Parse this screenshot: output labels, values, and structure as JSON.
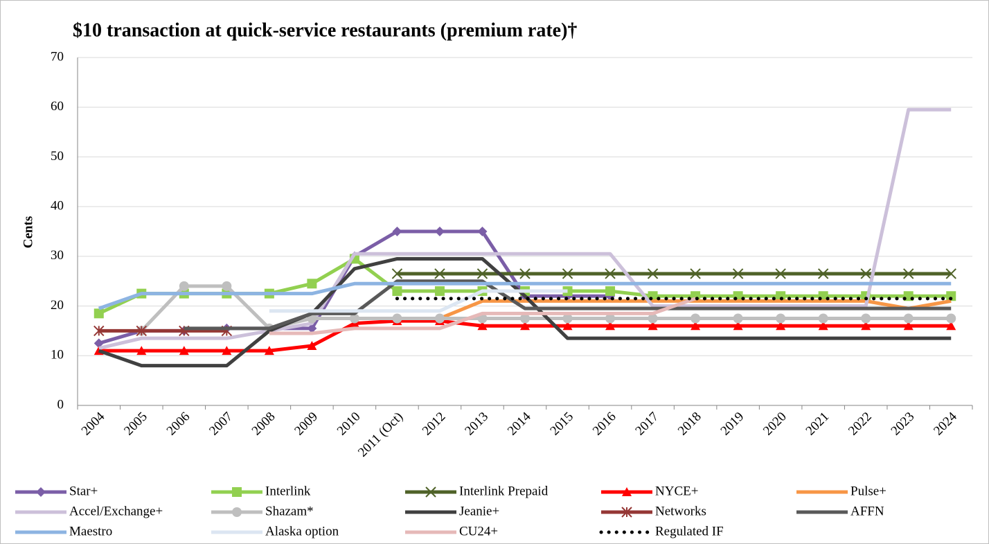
{
  "chart_data": {
    "type": "line",
    "title": "$10 transaction at quick-service restaurants (premium rate)†",
    "y_label": "Cents",
    "categories": [
      "2004",
      "2005",
      "2006",
      "2007",
      "2008",
      "2009",
      "2010",
      "2011 (Oct)",
      "2012",
      "2013",
      "2014",
      "2015",
      "2016",
      "2017",
      "2018",
      "2019",
      "2020",
      "2021",
      "2022",
      "2023",
      "2024"
    ],
    "ylim": [
      0,
      70
    ],
    "yticks": [
      0,
      10,
      20,
      30,
      40,
      50,
      60,
      70
    ],
    "grid": true,
    "legend": "bottom",
    "series": [
      {
        "name": "Star+",
        "color": "#7b5ea7",
        "marker": "diamond",
        "values": [
          12.5,
          15,
          15,
          15.5,
          15.5,
          15.5,
          30,
          35,
          35,
          35,
          22,
          22,
          22,
          null,
          null,
          null,
          null,
          null,
          null,
          null,
          null
        ]
      },
      {
        "name": "Interlink",
        "color": "#92d050",
        "marker": "square",
        "values": [
          18.5,
          22.5,
          22.5,
          22.5,
          22.5,
          24.5,
          29.5,
          23,
          23,
          23,
          23,
          23,
          23,
          22,
          22,
          22,
          22,
          22,
          22,
          22,
          22
        ]
      },
      {
        "name": "Interlink Prepaid",
        "color": "#4f6228",
        "marker": "x",
        "values": [
          null,
          null,
          null,
          null,
          null,
          null,
          null,
          26.5,
          26.5,
          26.5,
          26.5,
          26.5,
          26.5,
          26.5,
          26.5,
          26.5,
          26.5,
          26.5,
          26.5,
          26.5,
          26.5
        ]
      },
      {
        "name": "NYCE+",
        "color": "#ff0000",
        "marker": "triangle",
        "values": [
          11,
          11,
          11,
          11,
          11,
          12,
          16.5,
          17,
          17,
          16,
          16,
          16,
          16,
          16,
          16,
          16,
          16,
          16,
          16,
          16,
          16
        ]
      },
      {
        "name": "Pulse+",
        "color": "#f79646",
        "marker": "none",
        "values": [
          null,
          null,
          null,
          null,
          null,
          null,
          null,
          null,
          17.5,
          21,
          21,
          21,
          21,
          21,
          21,
          21,
          21,
          21,
          21,
          19.5,
          21
        ]
      },
      {
        "name": "Accel/Exchange+",
        "color": "#ccc0da",
        "marker": "none",
        "values": [
          11.5,
          13.5,
          13.5,
          13.5,
          15,
          16.5,
          30.5,
          30.5,
          30.5,
          30.5,
          30.5,
          30.5,
          30.5,
          20,
          20,
          20,
          20,
          20,
          20,
          59.5,
          59.5
        ]
      },
      {
        "name": "Shazam*",
        "color": "#bfbfbf",
        "marker": "circle",
        "values": [
          null,
          15,
          24,
          24,
          15.5,
          17.5,
          17.5,
          17.5,
          17.5,
          17.5,
          17.5,
          17.5,
          17.5,
          17.5,
          17.5,
          17.5,
          17.5,
          17.5,
          17.5,
          17.5,
          17.5
        ]
      },
      {
        "name": "Jeanie+",
        "color": "#404040",
        "marker": "none",
        "values": [
          11,
          8,
          8,
          8,
          15,
          18.5,
          27.5,
          29.5,
          29.5,
          29.5,
          22,
          13.5,
          13.5,
          13.5,
          13.5,
          13.5,
          13.5,
          13.5,
          13.5,
          13.5,
          13.5
        ]
      },
      {
        "name": "Networks",
        "color": "#953735",
        "marker": "asterisk",
        "values": [
          15,
          15,
          15,
          15,
          null,
          null,
          null,
          null,
          null,
          null,
          null,
          null,
          null,
          null,
          null,
          null,
          null,
          null,
          null,
          null,
          null
        ]
      },
      {
        "name": "AFFN",
        "color": "#595959",
        "marker": "none",
        "values": [
          null,
          null,
          15.5,
          15.5,
          15.5,
          18.5,
          18.5,
          25,
          25,
          25,
          19.5,
          19.5,
          19.5,
          19.5,
          19.5,
          19.5,
          19.5,
          19.5,
          19.5,
          19.5,
          19.5
        ]
      },
      {
        "name": "Maestro",
        "color": "#8db4e2",
        "marker": "none",
        "values": [
          19.5,
          22.5,
          22.5,
          22.5,
          22.5,
          22.5,
          24.5,
          24.5,
          24.5,
          24.5,
          24.5,
          24.5,
          24.5,
          24.5,
          24.5,
          24.5,
          24.5,
          24.5,
          24.5,
          24.5,
          24.5
        ]
      },
      {
        "name": "Alaska option",
        "color": "#dce6f2",
        "marker": "none",
        "values": [
          null,
          null,
          null,
          null,
          19,
          19,
          19,
          19,
          19,
          23,
          23,
          23,
          null,
          null,
          null,
          null,
          null,
          null,
          null,
          null,
          null
        ]
      },
      {
        "name": "CU24+",
        "color": "#e6b9b8",
        "marker": "none",
        "values": [
          null,
          null,
          null,
          null,
          14.5,
          14.5,
          15.5,
          15.5,
          15.5,
          18.5,
          18.5,
          18.5,
          18.5,
          18.5,
          21.5,
          null,
          null,
          null,
          null,
          null,
          null
        ]
      },
      {
        "name": "Regulated IF",
        "color": "#000000",
        "marker": "none",
        "dash": "dotted",
        "values": [
          null,
          null,
          null,
          null,
          null,
          null,
          null,
          21.5,
          21.5,
          21.5,
          21.5,
          21.5,
          21.5,
          21.5,
          21.5,
          21.5,
          21.5,
          21.5,
          21.5,
          21.5,
          21.5
        ]
      }
    ]
  }
}
